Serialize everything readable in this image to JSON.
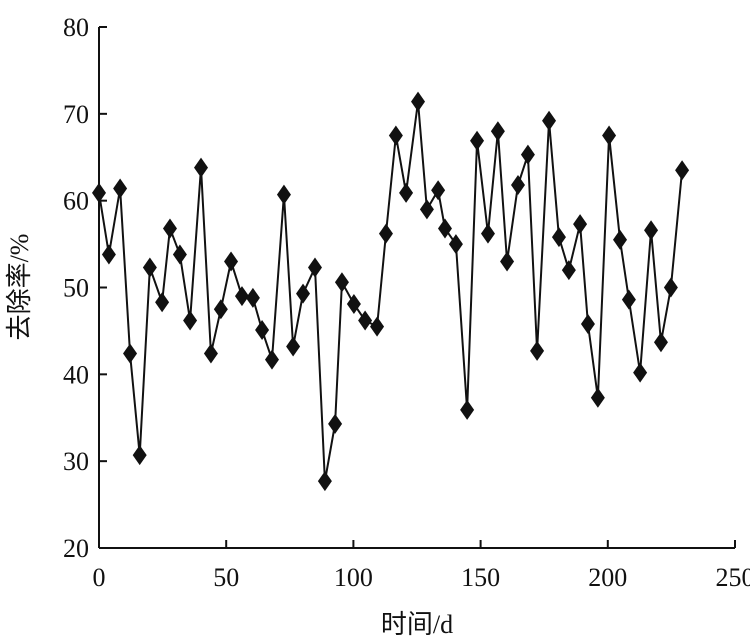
{
  "chart_data": {
    "type": "line",
    "x_label": "时间/d",
    "y_label": "去除率/%",
    "x": [
      0,
      3.9,
      8.3,
      12.2,
      16,
      20,
      24.8,
      27.9,
      31.8,
      35.8,
      40.1,
      44,
      47.9,
      51.9,
      56.2,
      60.5,
      64.1,
      68,
      72.7,
      76.3,
      80.2,
      84.9,
      88.8,
      92.8,
      95.5,
      100.2,
      104.6,
      109.3,
      112.8,
      116.7,
      120.7,
      125.4,
      128.9,
      133.3,
      136,
      140.3,
      144.7,
      148.6,
      152.9,
      156.8,
      160.4,
      164.7,
      168.6,
      172.2,
      176.9,
      180.8,
      184.7,
      189.1,
      192.2,
      196.1,
      200.5,
      204.8,
      208.3,
      212.7,
      217,
      220.9,
      224.8,
      229.2
    ],
    "series": [
      {
        "color": "#111111",
        "values": [
          60.9,
          53.8,
          61.4,
          42.4,
          30.7,
          52.3,
          48.3,
          56.8,
          53.8,
          46.2,
          63.8,
          42.4,
          47.5,
          53,
          49,
          48.8,
          45.1,
          41.7,
          60.7,
          43.2,
          49.3,
          52.3,
          27.7,
          34.3,
          50.6,
          48.1,
          46.2,
          45.5,
          56.2,
          67.5,
          60.9,
          71.4,
          59,
          61.2,
          56.8,
          55,
          35.9,
          66.9,
          56.2,
          68,
          53,
          61.8,
          65.3,
          42.7,
          69.2,
          55.8,
          52,
          57.3,
          45.8,
          37.3,
          67.5,
          55.5,
          48.6,
          40.2,
          56.6,
          43.7,
          50,
          63.5
        ]
      }
    ],
    "xlim": [
      0,
      250
    ],
    "xticks": [
      0,
      50,
      100,
      150,
      200,
      250
    ],
    "ylim": [
      20,
      80
    ],
    "yticks": [
      20,
      30,
      40,
      50,
      60,
      70,
      80
    ]
  }
}
